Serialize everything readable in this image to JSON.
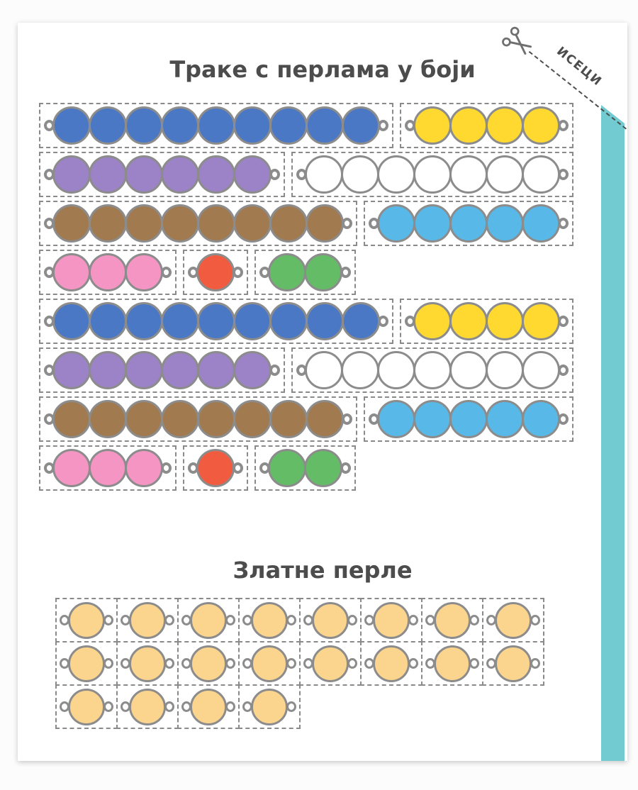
{
  "strips_section": {
    "title": "Траке с перлама у боји",
    "rows": [
      {
        "strips": [
          {
            "color": "blue",
            "count": 9
          },
          {
            "color": "yellow",
            "count": 4
          }
        ]
      },
      {
        "strips": [
          {
            "color": "purple",
            "count": 6
          },
          {
            "color": "white",
            "count": 7
          }
        ]
      },
      {
        "strips": [
          {
            "color": "brown",
            "count": 8
          },
          {
            "color": "light_blue",
            "count": 5
          }
        ]
      },
      {
        "strips": [
          {
            "color": "pink",
            "count": 3
          },
          {
            "color": "red",
            "count": 1
          },
          {
            "color": "green",
            "count": 2
          }
        ]
      },
      {
        "strips": [
          {
            "color": "blue",
            "count": 9
          },
          {
            "color": "yellow",
            "count": 4
          }
        ]
      },
      {
        "strips": [
          {
            "color": "purple",
            "count": 6
          },
          {
            "color": "white",
            "count": 7
          }
        ]
      },
      {
        "strips": [
          {
            "color": "brown",
            "count": 8
          },
          {
            "color": "light_blue",
            "count": 5
          }
        ]
      },
      {
        "strips": [
          {
            "color": "pink",
            "count": 3
          },
          {
            "color": "red",
            "count": 1
          },
          {
            "color": "green",
            "count": 2
          }
        ]
      }
    ]
  },
  "golden_section": {
    "title": "Златне перле",
    "rows": [
      8,
      8,
      4
    ],
    "bead_color": "golden"
  },
  "cut_corner": {
    "label": "ИСЕЦИ",
    "icon": "scissors-icon"
  },
  "colors": {
    "blue": "#4A78C5",
    "yellow": "#FFD930",
    "purple": "#9C82C6",
    "white": "#FFFFFF",
    "brown": "#A17A4F",
    "light_blue": "#58B9E8",
    "pink": "#F495C3",
    "red": "#F15B40",
    "green": "#64BD66",
    "golden": "#FBD48D",
    "bead_border": "#8C8C8C",
    "dash_border": "#8A8A8A",
    "teal_edge": "#72CBD0",
    "title_text": "#4C4C4C"
  }
}
